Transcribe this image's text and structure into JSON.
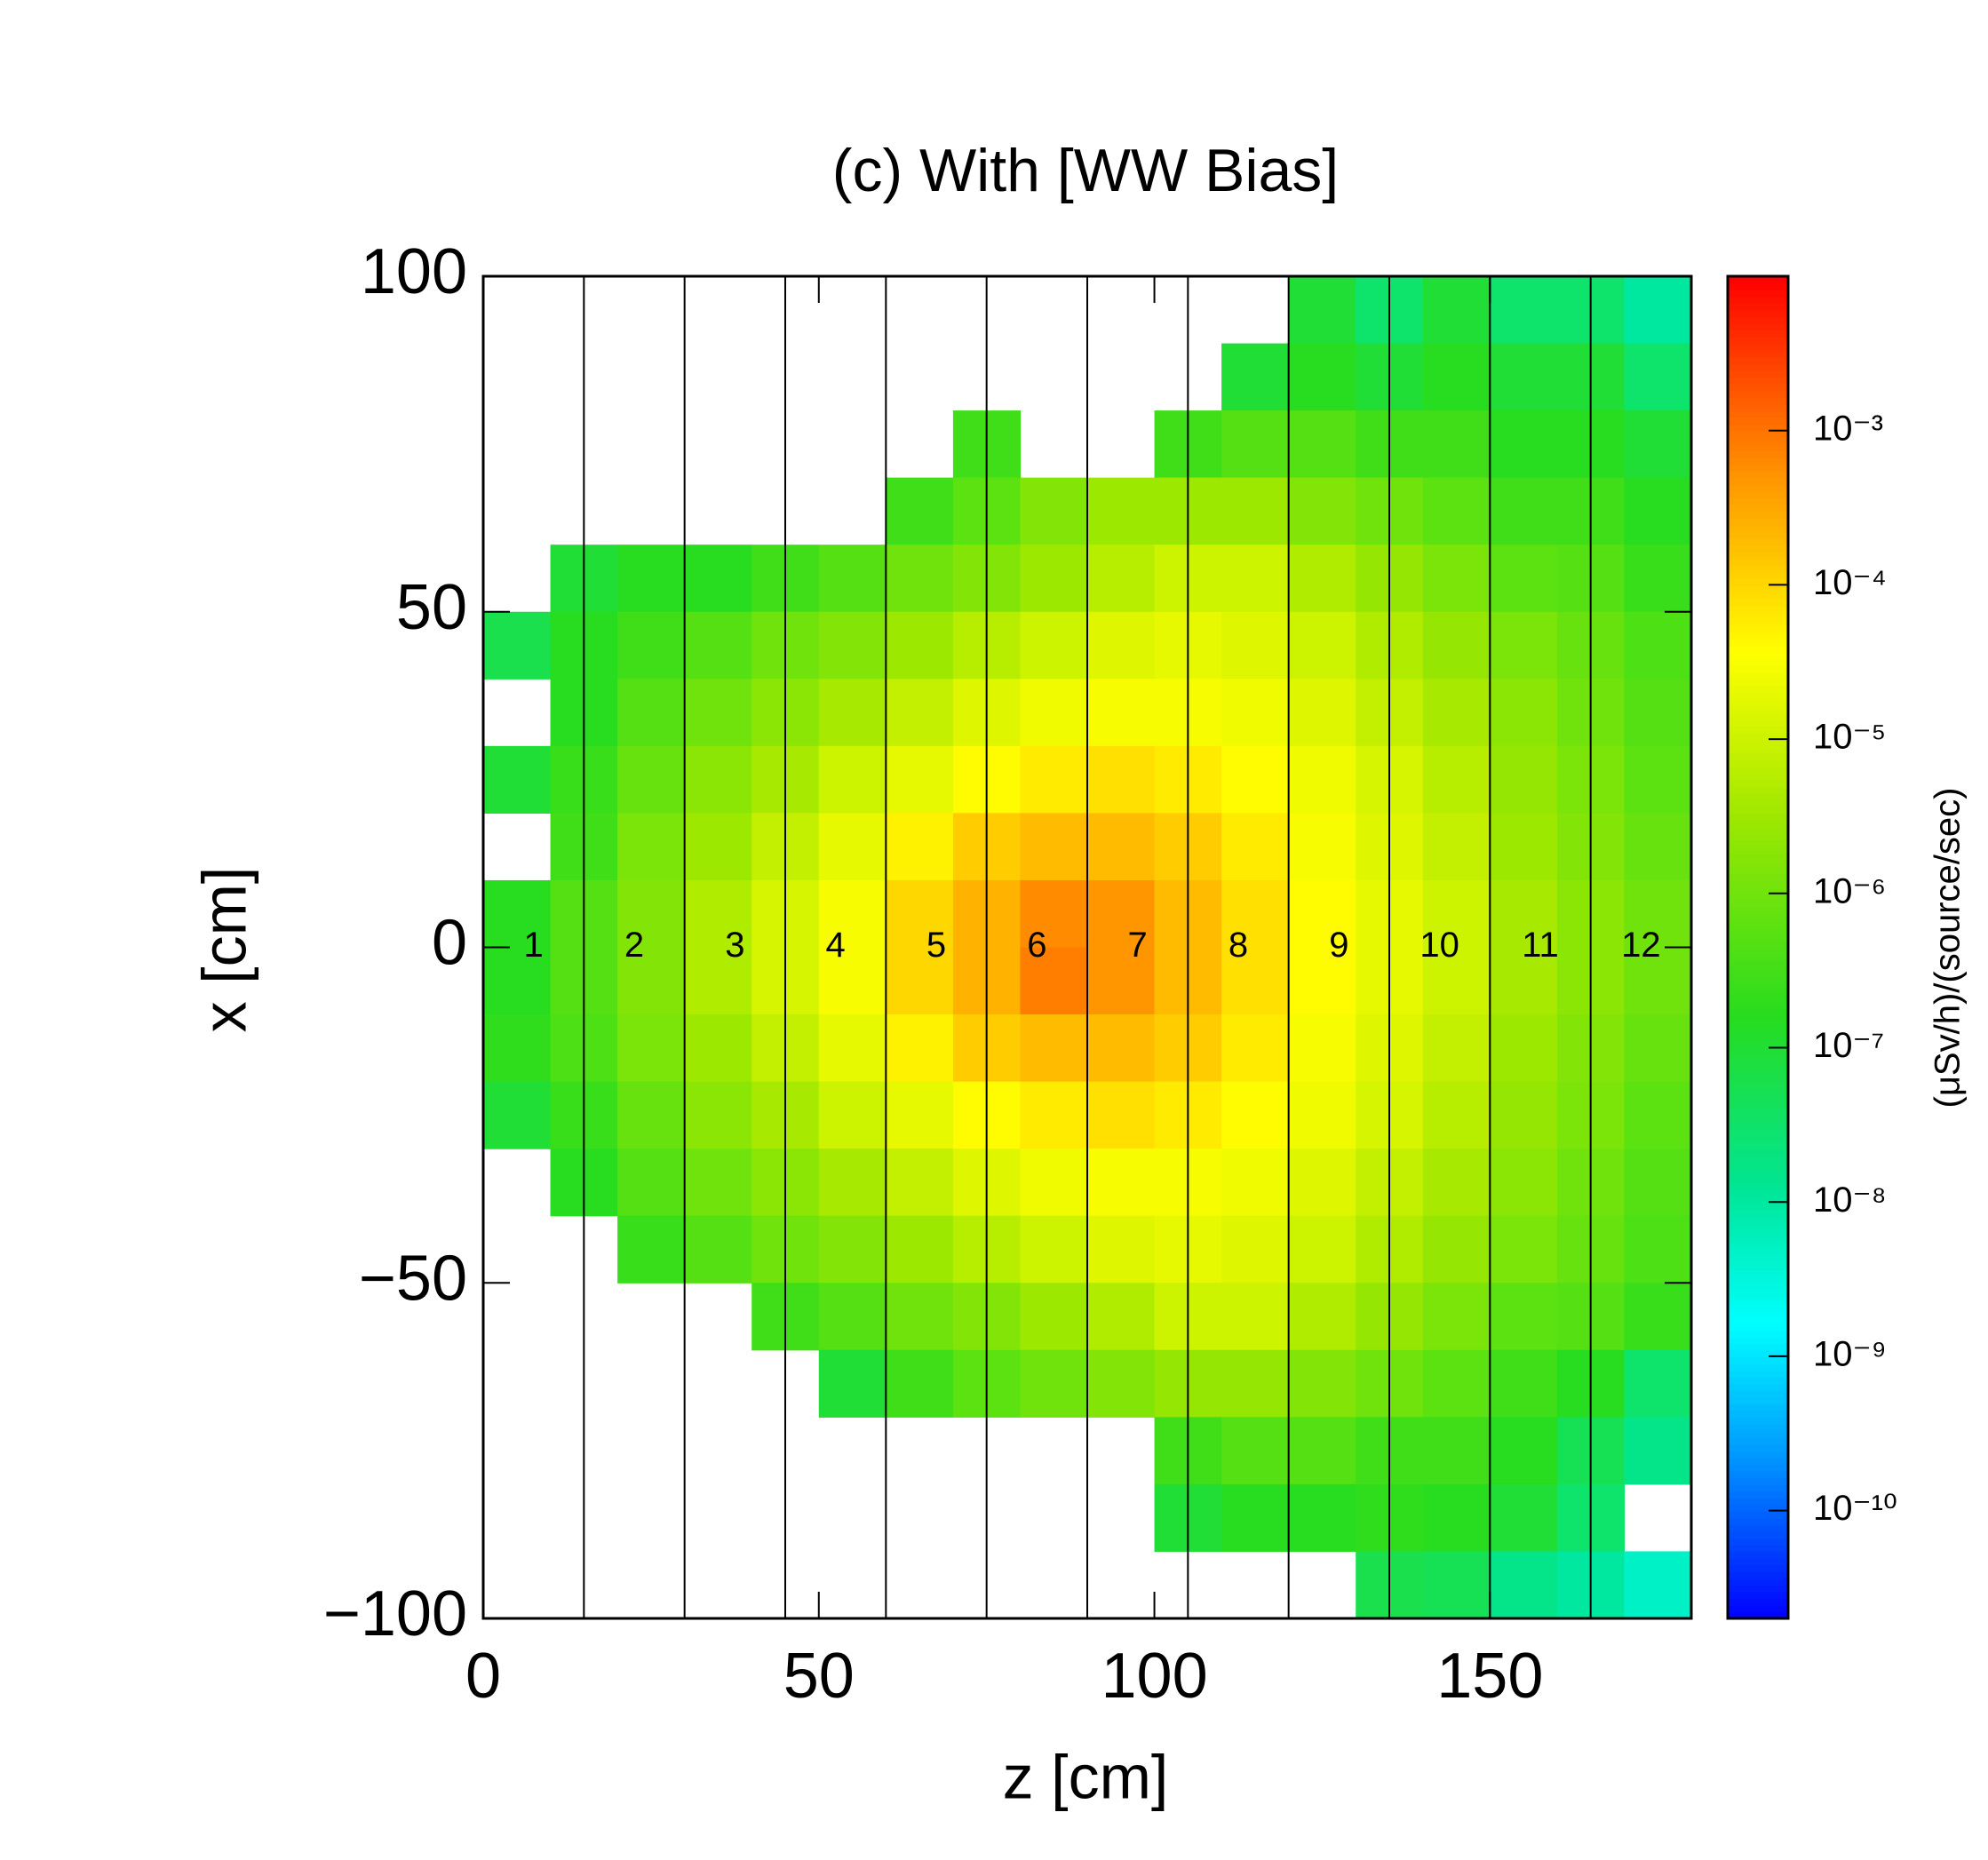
{
  "chart_data": {
    "type": "heatmap",
    "title": "(c) With [WW Bias]",
    "x_label": "z [cm]",
    "y_label": "x [cm]",
    "colorbar_label": "(μSv/h)/(source/sec)",
    "xlim": [
      0,
      180
    ],
    "xticks": [
      0,
      50,
      100,
      150
    ],
    "ylim": [
      -100,
      100
    ],
    "yticks": [
      {
        "value": -100,
        "label": "−100"
      },
      {
        "value": -50,
        "label": "−50"
      },
      0,
      50,
      100
    ],
    "clim": [
      2e-11,
      0.01
    ],
    "color_scale": "log",
    "cticks": [
      {
        "value": 0.001,
        "label": "10⁻³"
      },
      {
        "value": 0.0001,
        "label": "10⁻⁴"
      },
      {
        "value": 1e-05,
        "label": "10⁻⁵"
      },
      {
        "value": 1e-06,
        "label": "10⁻⁶"
      },
      {
        "value": 1e-07,
        "label": "10⁻⁷"
      },
      {
        "value": 1e-08,
        "label": "10⁻⁸"
      },
      {
        "value": 1e-09,
        "label": "10⁻⁹"
      },
      {
        "value": 1e-10,
        "label": "10⁻¹⁰"
      }
    ],
    "region_boundaries": [
      15,
      30,
      45,
      60,
      75,
      90,
      105,
      120,
      135,
      150,
      165
    ],
    "region_labels": [
      "1",
      "2",
      "3",
      "4",
      "5",
      "6",
      "7",
      "8",
      "9",
      "10",
      "11",
      "12"
    ],
    "xbins": [
      0,
      10,
      20,
      30,
      40,
      50,
      60,
      70,
      80,
      90,
      100,
      110,
      120,
      130,
      140,
      150,
      160,
      170,
      180
    ],
    "ybins": [
      100,
      90,
      80,
      70,
      60,
      50,
      40,
      30,
      20,
      10,
      0,
      -10,
      -20,
      -30,
      -40,
      -50,
      -60,
      -70,
      -80,
      -90,
      -100
    ],
    "values": [
      [
        null,
        null,
        null,
        null,
        null,
        null,
        null,
        null,
        null,
        null,
        null,
        null,
        1e-07,
        3e-08,
        1e-07,
        3e-08,
        3e-08,
        1e-08
      ],
      [
        null,
        null,
        null,
        null,
        null,
        null,
        null,
        null,
        null,
        null,
        null,
        1e-07,
        1.6e-07,
        1e-07,
        1.6e-07,
        1e-07,
        1e-07,
        3e-08
      ],
      [
        null,
        null,
        null,
        null,
        null,
        null,
        null,
        3e-07,
        null,
        null,
        3e-07,
        5e-07,
        5e-07,
        3e-07,
        3e-07,
        1.6e-07,
        1.6e-07,
        1e-07
      ],
      [
        null,
        null,
        null,
        null,
        null,
        null,
        3e-07,
        6e-07,
        1.6e-06,
        3e-06,
        3e-06,
        3e-06,
        1.6e-06,
        1e-06,
        6e-07,
        3e-07,
        3e-07,
        1.6e-07
      ],
      [
        null,
        1e-07,
        1.6e-07,
        1.6e-07,
        3e-07,
        5e-07,
        1e-06,
        1.6e-06,
        3e-06,
        6e-06,
        1e-05,
        1e-05,
        5e-06,
        2.5e-06,
        1.3e-06,
        6e-07,
        5e-07,
        2.5e-07
      ],
      [
        6e-08,
        1.6e-07,
        3e-07,
        5e-07,
        1e-06,
        1.6e-06,
        3e-06,
        6e-06,
        1e-05,
        1.6e-05,
        2e-05,
        1.6e-05,
        1e-05,
        5e-06,
        2.5e-06,
        1.3e-06,
        8e-07,
        4e-07
      ],
      [
        null,
        1.6e-07,
        5e-07,
        1e-06,
        2e-06,
        4e-06,
        8e-06,
        1.6e-05,
        2.5e-05,
        3e-05,
        3e-05,
        2.5e-05,
        1.6e-05,
        8e-06,
        4e-06,
        2e-06,
        1e-06,
        5e-07
      ],
      [
        1e-07,
        2.5e-07,
        8e-07,
        2e-06,
        4e-06,
        1e-05,
        2e-05,
        4e-05,
        6e-05,
        8e-05,
        6e-05,
        4e-05,
        2.5e-05,
        1.3e-05,
        6e-06,
        2.5e-06,
        1.3e-06,
        6e-07
      ],
      [
        null,
        3e-07,
        1.3e-06,
        3e-06,
        8e-06,
        2e-05,
        5e-05,
        0.00013,
        0.0002,
        0.0002,
        0.00013,
        6e-05,
        3e-05,
        1.6e-05,
        8e-06,
        3e-06,
        1.6e-06,
        8e-07
      ],
      [
        1.6e-07,
        5e-07,
        1.6e-06,
        5e-06,
        1.3e-05,
        3e-05,
        0.0001,
        0.00025,
        0.0006,
        0.0005,
        0.0002,
        8e-05,
        4e-05,
        2e-05,
        1e-05,
        4e-06,
        2e-06,
        1e-06
      ],
      [
        1.6e-07,
        5e-07,
        1.6e-06,
        5e-06,
        1.3e-05,
        3e-05,
        0.0001,
        0.00025,
        0.0008,
        0.0005,
        0.0002,
        8e-05,
        4e-05,
        2e-05,
        1e-05,
        4e-06,
        2e-06,
        1e-06
      ],
      [
        2e-07,
        4e-07,
        1.3e-06,
        3e-06,
        8e-06,
        2e-05,
        5e-05,
        0.00013,
        0.0002,
        0.0002,
        0.00013,
        6e-05,
        3e-05,
        1.6e-05,
        8e-06,
        3e-06,
        1.6e-06,
        8e-07
      ],
      [
        1e-07,
        2.5e-07,
        8e-07,
        2e-06,
        4e-06,
        1e-05,
        2e-05,
        4e-05,
        6e-05,
        8e-05,
        6e-05,
        4e-05,
        2.5e-05,
        1.3e-05,
        6e-06,
        2.5e-06,
        1.3e-06,
        6e-07
      ],
      [
        null,
        1.6e-07,
        5e-07,
        1e-06,
        2e-06,
        4e-06,
        8e-06,
        1.6e-05,
        2.5e-05,
        3e-05,
        3e-05,
        2.5e-05,
        1.6e-05,
        8e-06,
        4e-06,
        2e-06,
        1e-06,
        5e-07
      ],
      [
        null,
        null,
        2.5e-07,
        5e-07,
        1e-06,
        1.6e-06,
        3e-06,
        6e-06,
        1e-05,
        1.6e-05,
        2e-05,
        1.6e-05,
        1e-05,
        5e-06,
        2.5e-06,
        1.3e-06,
        8e-07,
        4e-07
      ],
      [
        null,
        null,
        null,
        null,
        3e-07,
        5e-07,
        1e-06,
        1.6e-06,
        3e-06,
        5e-06,
        1e-05,
        1e-05,
        5e-06,
        2.5e-06,
        1.3e-06,
        6e-07,
        5e-07,
        2.5e-07
      ],
      [
        null,
        null,
        null,
        null,
        null,
        1e-07,
        3e-07,
        6e-07,
        1e-06,
        1.6e-06,
        2.5e-06,
        2.5e-06,
        1.6e-06,
        1e-06,
        6e-07,
        3e-07,
        1.6e-07,
        3e-08
      ],
      [
        null,
        null,
        null,
        null,
        null,
        null,
        null,
        null,
        null,
        null,
        3e-07,
        5e-07,
        5e-07,
        3e-07,
        3e-07,
        1.6e-07,
        5e-08,
        1.6e-08
      ],
      [
        null,
        null,
        null,
        null,
        null,
        null,
        null,
        null,
        null,
        null,
        1e-07,
        1.6e-07,
        1.6e-07,
        2e-07,
        1.6e-07,
        1e-07,
        3e-08,
        null
      ],
      [
        null,
        null,
        null,
        null,
        null,
        null,
        null,
        null,
        null,
        null,
        null,
        null,
        null,
        6e-08,
        5e-08,
        1.6e-08,
        1e-08,
        5e-09
      ]
    ]
  }
}
